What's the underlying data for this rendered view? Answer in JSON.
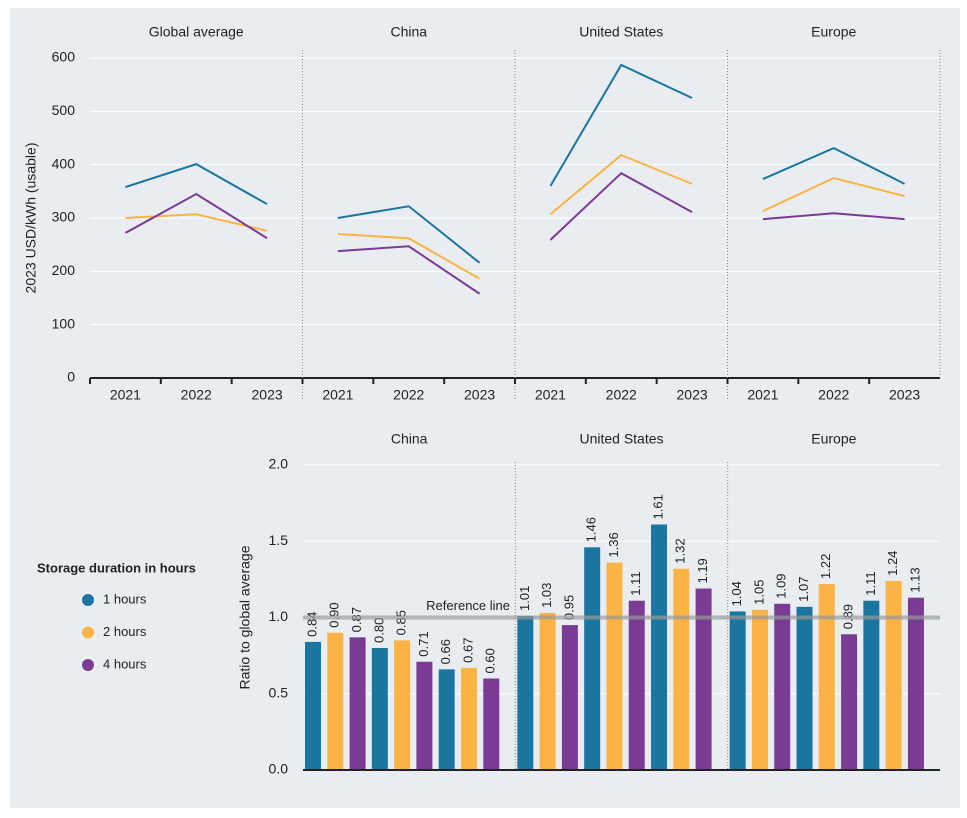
{
  "chart_data": [
    {
      "type": "line",
      "ylabel": "2023 USD/kWh (usable)",
      "ylim": [
        0,
        600
      ],
      "yticks": [
        0,
        100,
        200,
        300,
        400,
        500,
        600
      ],
      "grid": true,
      "panels": [
        {
          "title": "Global average",
          "categories": [
            "2021",
            "2022",
            "2023"
          ],
          "values": [
            [
              358,
              401,
              326
            ],
            [
              300,
              307,
              276
            ],
            [
              272,
              345,
              262
            ]
          ]
        },
        {
          "title": "China",
          "categories": [
            "2021",
            "2022",
            "2023"
          ],
          "values": [
            [
              300,
              322,
              216
            ],
            [
              270,
              262,
              186
            ],
            [
              238,
              247,
              158
            ]
          ]
        },
        {
          "title": "United States",
          "categories": [
            "2021",
            "2022",
            "2023"
          ],
          "values": [
            [
              360,
              587,
              525
            ],
            [
              307,
              418,
              364
            ],
            [
              259,
              384,
              311
            ]
          ]
        },
        {
          "title": "Europe",
          "categories": [
            "2021",
            "2022",
            "2023"
          ],
          "values": [
            [
              373,
              431,
              364
            ],
            [
              313,
              375,
              341
            ],
            [
              298,
              309,
              298
            ]
          ]
        }
      ]
    },
    {
      "type": "bar",
      "ylabel": "Ratio to global average",
      "ylim": [
        0,
        2
      ],
      "yticks": [
        {
          "value": 0,
          "label": "0.0"
        },
        {
          "value": 0.5,
          "label": "0.5"
        },
        {
          "value": 1,
          "label": "1.0"
        },
        {
          "value": 1.5,
          "label": "1.5"
        },
        {
          "value": 2,
          "label": "2.0"
        }
      ],
      "grid": true,
      "reference": {
        "value": 1,
        "label": "Reference line"
      },
      "panels": [
        {
          "title": "China",
          "values": [
            [
              0.84,
              0.8,
              0.66
            ],
            [
              0.9,
              0.85,
              0.67
            ],
            [
              0.87,
              0.71,
              0.6
            ]
          ],
          "value_labels": [
            [
              "0.84",
              "0.80",
              "0.66"
            ],
            [
              "0.90",
              "0.85",
              "0.67"
            ],
            [
              "0.87",
              "0.71",
              "0.60"
            ]
          ]
        },
        {
          "title": "United States",
          "values": [
            [
              1.01,
              1.46,
              1.61
            ],
            [
              1.03,
              1.36,
              1.32
            ],
            [
              0.95,
              1.11,
              1.19
            ]
          ],
          "value_labels": [
            [
              "1.01",
              "1.46",
              "1.61"
            ],
            [
              "1.03",
              "1.36",
              "1.32"
            ],
            [
              "0.95",
              "1.11",
              "1.19"
            ]
          ]
        },
        {
          "title": "Europe",
          "values": [
            [
              1.04,
              1.07,
              1.11
            ],
            [
              1.05,
              1.22,
              1.24
            ],
            [
              1.09,
              0.89,
              1.13
            ]
          ],
          "value_labels": [
            [
              "1.04",
              "1.07",
              "1.11"
            ],
            [
              "1.05",
              "1.22",
              "1.24"
            ],
            [
              "1.09",
              "0.89",
              "1.13"
            ]
          ]
        }
      ]
    },
    {
      "type": "legend",
      "title": "Storage duration in hours",
      "series": [
        {
          "name": "1 hours",
          "color": "#1b75a1"
        },
        {
          "name": "2 hours",
          "color": "#fbb345"
        },
        {
          "name": "4 hours",
          "color": "#7a3b94"
        }
      ]
    }
  ]
}
